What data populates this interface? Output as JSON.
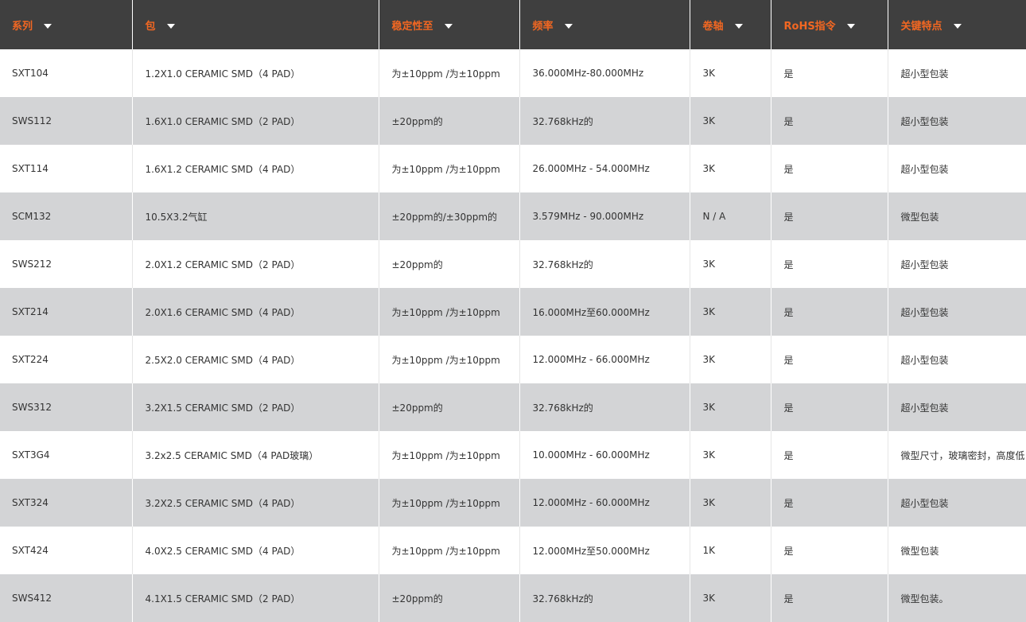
{
  "table": {
    "columns": [
      "系列",
      "包",
      "稳定性至",
      "频率",
      "卷轴",
      "RoHS指令",
      "关键特点"
    ],
    "rows": [
      [
        "SXT104",
        "1.2X1.0 CERAMIC SMD（4 PAD）",
        "为±10ppm /为±10ppm",
        "36.000MHz-80.000MHz",
        "3K",
        "是",
        "超小型包装"
      ],
      [
        "SWS112",
        "1.6X1.0 CERAMIC SMD（2 PAD）",
        "±20ppm的",
        "32.768kHz的",
        "3K",
        "是",
        "超小型包装"
      ],
      [
        "SXT114",
        "1.6X1.2 CERAMIC SMD（4 PAD）",
        "为±10ppm /为±10ppm",
        "26.000MHz - 54.000MHz",
        "3K",
        "是",
        "超小型包装"
      ],
      [
        "SCM132",
        "10.5X3.2气缸",
        "±20ppm的/±30ppm的",
        "3.579MHz - 90.000MHz",
        "N / A",
        "是",
        "微型包装"
      ],
      [
        "SWS212",
        "2.0X1.2 CERAMIC SMD（2 PAD）",
        "±20ppm的",
        "32.768kHz的",
        "3K",
        "是",
        "超小型包装"
      ],
      [
        "SXT214",
        "2.0X1.6 CERAMIC SMD（4 PAD）",
        "为±10ppm /为±10ppm",
        "16.000MHz至60.000MHz",
        "3K",
        "是",
        "超小型包装"
      ],
      [
        "SXT224",
        "2.5X2.0 CERAMIC SMD（4 PAD）",
        "为±10ppm /为±10ppm",
        "12.000MHz - 66.000MHz",
        "3K",
        "是",
        "超小型包装"
      ],
      [
        "SWS312",
        "3.2X1.5 CERAMIC SMD（2 PAD）",
        "±20ppm的",
        "32.768kHz的",
        "3K",
        "是",
        "超小型包装"
      ],
      [
        "SXT3G4",
        "3.2x2.5 CERAMIC SMD（4 PAD玻璃）",
        "为±10ppm /为±10ppm",
        "10.000MHz - 60.000MHz",
        "3K",
        "是",
        "微型尺寸，玻璃密封，高度低"
      ],
      [
        "SXT324",
        "3.2X2.5 CERAMIC SMD（4 PAD）",
        "为±10ppm /为±10ppm",
        "12.000MHz - 60.000MHz",
        "3K",
        "是",
        "超小型包装"
      ],
      [
        "SXT424",
        "4.0X2.5 CERAMIC SMD（4 PAD）",
        "为±10ppm /为±10ppm",
        "12.000MHz至50.000MHz",
        "1K",
        "是",
        "微型包装"
      ],
      [
        "SWS412",
        "4.1X1.5 CERAMIC SMD（2 PAD）",
        "±20ppm的",
        "32.768kHz的",
        "3K",
        "是",
        "微型包装。"
      ]
    ]
  }
}
